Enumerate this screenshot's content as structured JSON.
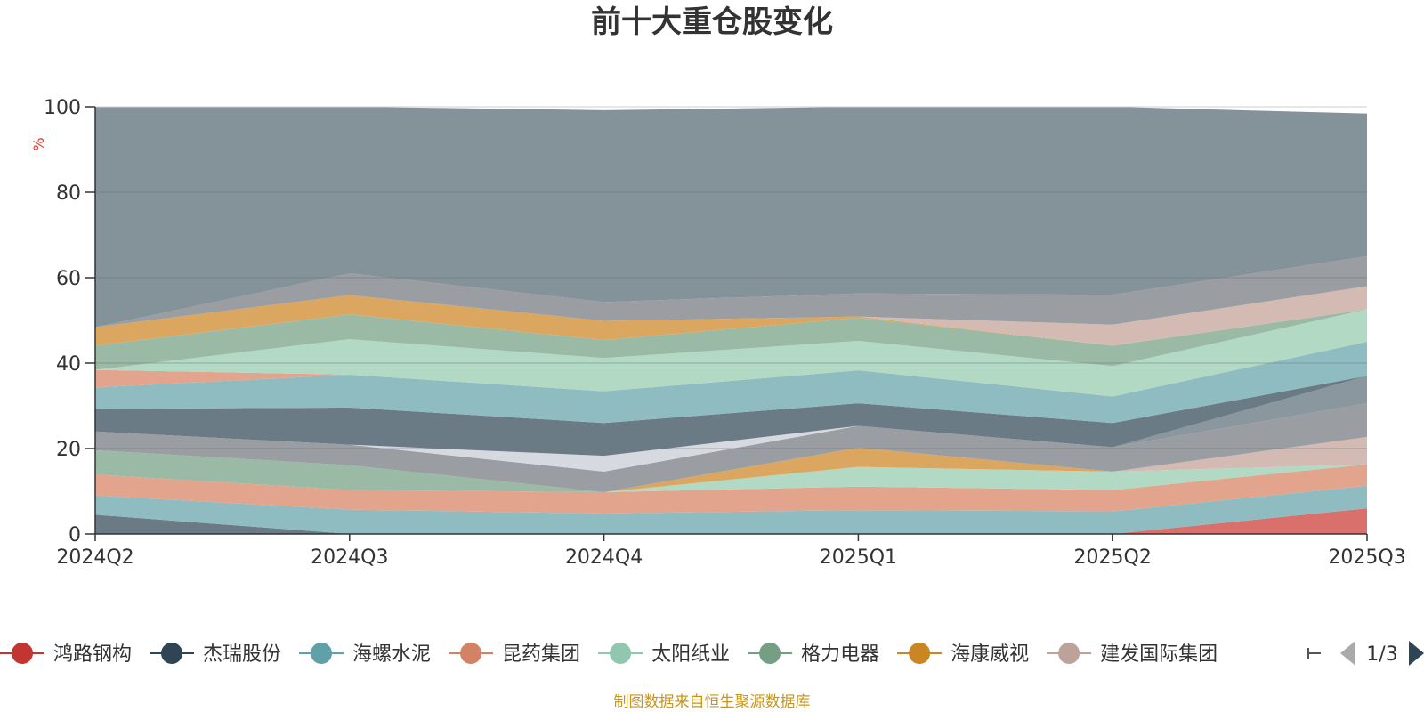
{
  "chart_data": {
    "type": "area",
    "title": "前十大重仓股变化",
    "ylabel": "%",
    "ylim": [
      0,
      100
    ],
    "yticks": [
      0,
      20,
      40,
      60,
      80,
      100
    ],
    "categories": [
      "2024Q2",
      "2024Q3",
      "2024Q4",
      "2025Q1",
      "2025Q2",
      "2025Q3"
    ],
    "layers": [
      {
        "name": "鸿路钢构-1",
        "color": "#d9706b",
        "lower": [
          0,
          0,
          0,
          0,
          0,
          0
        ],
        "upper": [
          0,
          0,
          0,
          0,
          0,
          6.0
        ]
      },
      {
        "name": "layer-a",
        "color": "#6b7b86",
        "lower": [
          0,
          0,
          0,
          0,
          0,
          6.0
        ],
        "upper": [
          4.5,
          0,
          0,
          0,
          0,
          6.0
        ]
      },
      {
        "name": "layer-b",
        "color": "#8fbcc1",
        "lower": [
          4.5,
          0,
          0,
          0,
          0,
          6.0
        ],
        "upper": [
          9.0,
          5.7,
          4.8,
          5.6,
          5.3,
          11.3
        ]
      },
      {
        "name": "layer-c",
        "color": "#e3a48e",
        "lower": [
          9.0,
          5.7,
          4.8,
          5.6,
          5.3,
          11.3
        ],
        "upper": [
          13.9,
          10.3,
          9.8,
          11.1,
          10.3,
          16.3
        ]
      },
      {
        "name": "layer-d",
        "color": "#b2d9c4",
        "lower": [
          13.9,
          10.3,
          9.8,
          11.1,
          10.3,
          16.3
        ],
        "upper": [
          13.9,
          10.3,
          9.8,
          15.7,
          14.6,
          16.3
        ]
      },
      {
        "name": "layer-e",
        "color": "#9bbaa5",
        "lower": [
          13.9,
          10.3,
          9.8,
          15.7,
          14.6,
          16.3
        ],
        "upper": [
          19.6,
          16.1,
          9.8,
          15.7,
          14.6,
          16.3
        ]
      },
      {
        "name": "layer-f",
        "color": "#dba760",
        "lower": [
          19.6,
          16.1,
          9.8,
          15.7,
          14.6,
          16.3
        ],
        "upper": [
          19.6,
          16.1,
          9.8,
          20.2,
          14.6,
          16.3
        ]
      },
      {
        "name": "layer-g",
        "color": "#d3bbb3",
        "lower": [
          19.6,
          16.1,
          9.8,
          20.2,
          14.6,
          16.3
        ],
        "upper": [
          19.6,
          16.1,
          9.8,
          20.2,
          14.6,
          22.7
        ]
      },
      {
        "name": "layer-h",
        "color": "#9a9da1",
        "lower": [
          19.6,
          16.1,
          9.8,
          20.2,
          14.6,
          22.7
        ],
        "upper": [
          24.0,
          20.9,
          14.6,
          25.3,
          20.3,
          30.6
        ]
      },
      {
        "name": "layer-i",
        "color": "#d6dae0",
        "lower": [
          24.0,
          20.9,
          14.6,
          25.3,
          20.3,
          30.6
        ],
        "upper": [
          24.0,
          20.9,
          18.3,
          25.3,
          20.3,
          30.6
        ]
      },
      {
        "name": "layer-j",
        "color": "#8a979e",
        "lower": [
          24.0,
          20.9,
          18.3,
          25.3,
          20.3,
          30.6
        ],
        "upper": [
          24.0,
          20.9,
          18.3,
          25.3,
          20.3,
          37.0
        ]
      },
      {
        "name": "鸿路钢构-2",
        "color": "#d9706b",
        "lower": [
          24.0,
          20.9,
          18.3,
          25.3,
          20.3,
          37.0
        ],
        "upper": [
          24.0,
          20.9,
          18.3,
          25.3,
          20.3,
          37.0
        ]
      },
      {
        "name": "layer-k",
        "color": "#6b7b86",
        "lower": [
          24.0,
          20.9,
          18.3,
          25.3,
          20.3,
          37.0
        ],
        "upper": [
          29.3,
          29.6,
          26.0,
          30.6,
          26.0,
          37.0
        ]
      },
      {
        "name": "layer-l",
        "color": "#8fbcc1",
        "lower": [
          29.3,
          29.6,
          26.0,
          30.6,
          26.0,
          37.0
        ],
        "upper": [
          34.3,
          37.3,
          33.4,
          38.3,
          32.2,
          45.0
        ]
      },
      {
        "name": "layer-m",
        "color": "#e3a48e",
        "lower": [
          34.3,
          37.3,
          33.4,
          38.3,
          32.2,
          45.0
        ],
        "upper": [
          38.4,
          37.3,
          33.4,
          38.3,
          32.2,
          45.0
        ]
      },
      {
        "name": "layer-n",
        "color": "#b2d9c4",
        "lower": [
          38.4,
          37.3,
          33.4,
          38.3,
          32.2,
          45.0
        ],
        "upper": [
          38.4,
          45.6,
          41.2,
          45.2,
          39.3,
          52.6
        ]
      },
      {
        "name": "layer-o",
        "color": "#9bbaa5",
        "lower": [
          38.4,
          45.6,
          41.2,
          45.2,
          39.3,
          52.6
        ],
        "upper": [
          44.1,
          51.4,
          45.4,
          50.6,
          44.1,
          52.6
        ]
      },
      {
        "name": "layer-p",
        "color": "#dba760",
        "lower": [
          44.1,
          51.4,
          45.4,
          50.6,
          44.1,
          52.6
        ],
        "upper": [
          48.4,
          55.9,
          49.9,
          50.9,
          44.1,
          52.6
        ]
      },
      {
        "name": "layer-q",
        "color": "#d3bbb3",
        "lower": [
          48.4,
          55.9,
          49.9,
          50.9,
          44.1,
          52.6
        ],
        "upper": [
          48.4,
          55.9,
          49.9,
          50.9,
          49.0,
          58.0
        ]
      },
      {
        "name": "layer-r",
        "color": "#9a9da1",
        "lower": [
          48.4,
          55.9,
          49.9,
          50.9,
          49.0,
          58.0
        ],
        "upper": [
          48.4,
          61.0,
          54.3,
          56.3,
          56.0,
          65.0
        ]
      },
      {
        "name": "layer-s",
        "color": "#84939a",
        "lower": [
          48.4,
          61.0,
          54.3,
          56.3,
          56.0,
          65.0
        ],
        "upper": [
          100,
          100,
          99.2,
          100,
          100,
          98.4
        ]
      }
    ],
    "legend": [
      {
        "name": "鸿路钢构",
        "color": "#c23531"
      },
      {
        "name": "杰瑞股份",
        "color": "#2f4554"
      },
      {
        "name": "海螺水泥",
        "color": "#61a0a8"
      },
      {
        "name": "昆药集团",
        "color": "#d48265"
      },
      {
        "name": "太阳纸业",
        "color": "#91c7ae"
      },
      {
        "name": "格力电器",
        "color": "#749f83"
      },
      {
        "name": "海康威视",
        "color": "#ca8622"
      },
      {
        "name": "建发国际集团",
        "color": "#bda29a"
      }
    ],
    "legend_page": "1/3",
    "source_note": "制图数据来自恒生聚源数据库"
  }
}
